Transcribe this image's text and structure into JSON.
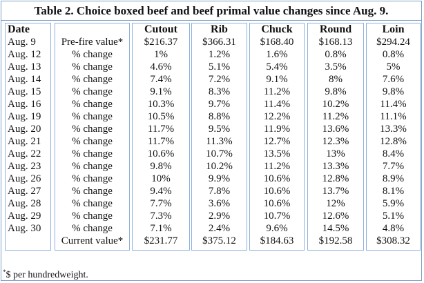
{
  "title": "Table 2. Choice boxed beef and beef primal value changes since Aug. 9.",
  "date_header": "Date",
  "dates": [
    "Aug. 9",
    "Aug. 12",
    "Aug. 13",
    "Aug. 14",
    "Aug. 15",
    "Aug. 16",
    "Aug. 19",
    "Aug. 20",
    "Aug. 21",
    "Aug. 22",
    "Aug. 23",
    "Aug. 26",
    "Aug. 27",
    "Aug. 28",
    "Aug. 29",
    "Aug. 30"
  ],
  "row_labels": [
    "Pre-fire value*",
    "% change",
    "% change",
    "% change",
    "% change",
    "% change",
    "% change",
    "% change",
    "% change",
    "% change",
    "% change",
    "% change",
    "% change",
    "% change",
    "% change",
    "% change",
    "Current value*"
  ],
  "columns": [
    {
      "header": "Cutout",
      "values": [
        "$216.37",
        "1%",
        "4.6%",
        "7.4%",
        "9.1%",
        "10.3%",
        "10.5%",
        "11.7%",
        "11.7%",
        "10.6%",
        "9.8%",
        "10%",
        "9.4%",
        "7.7%",
        "7.3%",
        "7.1%",
        "$231.77"
      ]
    },
    {
      "header": "Rib",
      "values": [
        "$366.31",
        "1.2%",
        "5.1%",
        "7.2%",
        "8.3%",
        "9.7%",
        "8.8%",
        "9.5%",
        "11.3%",
        "10.7%",
        "10.2%",
        "9.9%",
        "7.8%",
        "3.6%",
        "2.9%",
        "2.4%",
        "$375.12"
      ]
    },
    {
      "header": "Chuck",
      "values": [
        "$168.40",
        "1.6%",
        "5.4%",
        "9.1%",
        "11.2%",
        "11.4%",
        "12.2%",
        "11.9%",
        "12.7%",
        "13.5%",
        "11.2%",
        "10.6%",
        "10.6%",
        "10.6%",
        "10.7%",
        "9.6%",
        "$184.63"
      ]
    },
    {
      "header": "Round",
      "values": [
        "$168.13",
        "0.8%",
        "3.5%",
        "8%",
        "9.8%",
        "10.2%",
        "11.2%",
        "13.6%",
        "12.3%",
        "13%",
        "13.3%",
        "12.8%",
        "13.7%",
        "12%",
        "12.6%",
        "14.5%",
        "$192.58"
      ]
    },
    {
      "header": "Loin",
      "values": [
        "$294.24",
        "0.8%",
        "5%",
        "7.6%",
        "9.8%",
        "11.4%",
        "11.1%",
        "13.3%",
        "12.8%",
        "8.4%",
        "7.7%",
        "8.9%",
        "8.1%",
        "5.9%",
        "5.1%",
        "4.8%",
        "$308.32"
      ]
    }
  ],
  "footnote_mark": "*",
  "footnote_text": "$ per hundredweight."
}
